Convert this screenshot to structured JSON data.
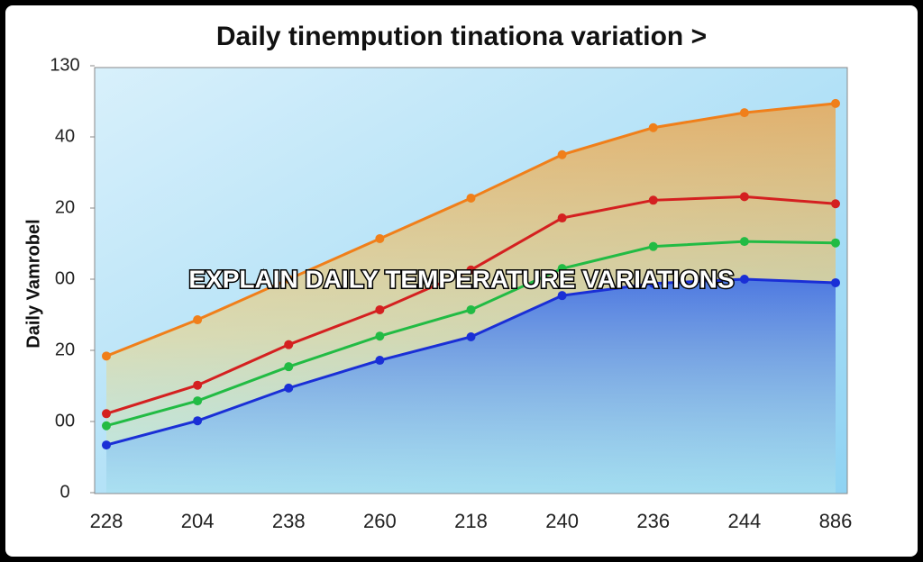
{
  "chart_data": {
    "type": "line",
    "title": "Daily tinempution tinationa variation >",
    "y_label": "Daily Vamrobel",
    "annotation": "EXPLAIN DAILY TEMPERATURE VARIATIONS",
    "categories": [
      "228",
      "204",
      "238",
      "260",
      "218",
      "240",
      "236",
      "244",
      "886"
    ],
    "series": [
      {
        "color": "#f07f1a",
        "values": [
          1.92,
          2.43,
          3.0,
          3.57,
          4.14,
          4.75,
          5.13,
          5.34,
          5.47
        ]
      },
      {
        "color": "#d42020",
        "values": [
          1.11,
          1.51,
          2.08,
          2.57,
          3.13,
          3.86,
          4.11,
          4.16,
          4.06
        ]
      },
      {
        "color": "#22bb44",
        "values": [
          0.94,
          1.29,
          1.77,
          2.2,
          2.57,
          3.15,
          3.46,
          3.53,
          3.51
        ]
      },
      {
        "color": "#1a2fd6",
        "values": [
          0.67,
          1.01,
          1.47,
          1.86,
          2.19,
          2.77,
          2.94,
          3.0,
          2.95
        ]
      }
    ],
    "ylim": [
      0,
      6
    ],
    "yticks": [
      0,
      {
        "value": 1,
        "label": "00"
      },
      {
        "value": 2,
        "label": "20"
      },
      {
        "value": 3,
        "label": "00"
      },
      {
        "value": 4,
        "label": "20"
      },
      {
        "value": 5,
        "label": "40"
      },
      {
        "value": 6,
        "label": "130"
      }
    ]
  }
}
